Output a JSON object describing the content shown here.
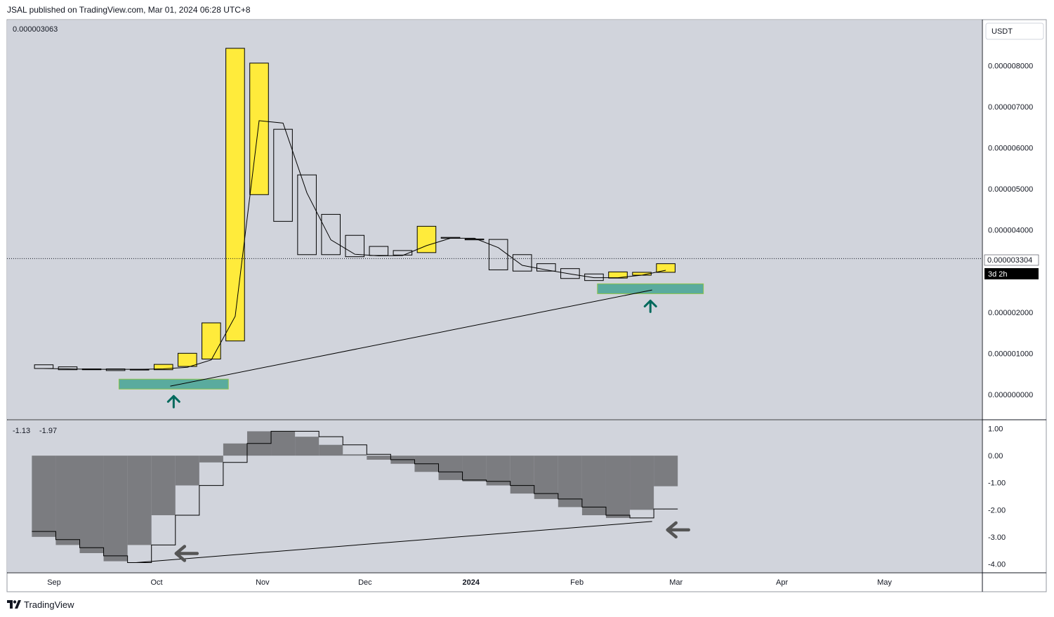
{
  "header": {
    "published": "JSAL published on TradingView.com, Mar 01, 2024 06:28 UTC+8"
  },
  "footer": {
    "brand": "TradingView"
  },
  "colors": {
    "background": "#d1d4dc",
    "bull_candle": "#ffeb3b",
    "bear_candle": "#d1d4dc",
    "zone": "#5aab9e",
    "zone_border": "#8bc34a",
    "arrow_up": "#00695c",
    "arrow_left": "#555555",
    "histogram": "#7b7c80",
    "line": "#000000"
  },
  "chart_data": [
    {
      "type": "candlestick",
      "title": "",
      "legend_value": "0.000003063",
      "currency": "USDT",
      "last_price": "0.000003304",
      "countdown": "3d 2h",
      "ylim": [
        -6e-07,
        9.1e-06
      ],
      "y_ticks": [
        "0.000008000",
        "0.000007000",
        "0.000006000",
        "0.000005000",
        "0.000004000",
        "0.000002000",
        "0.000001000",
        "0.000000000"
      ],
      "x_ticks": [
        "Sep",
        "Oct",
        "Nov",
        "Dec",
        "2024",
        "Feb",
        "Mar",
        "Apr",
        "May"
      ],
      "candles": [
        {
          "date": "2023-08-29",
          "open": 7.2e-07,
          "close": 6.3e-07,
          "high": 7.2e-07,
          "low": 6.3e-07
        },
        {
          "date": "2023-09-05",
          "open": 6.7e-07,
          "close": 6e-07,
          "high": 6.7e-07,
          "low": 6e-07
        },
        {
          "date": "2023-09-12",
          "open": 6.2e-07,
          "close": 6e-07,
          "high": 6.2e-07,
          "low": 6e-07
        },
        {
          "date": "2023-09-19",
          "open": 6.2e-07,
          "close": 5.8e-07,
          "high": 6.2e-07,
          "low": 5.8e-07
        },
        {
          "date": "2023-09-26",
          "open": 6.1e-07,
          "close": 6e-07,
          "high": 6.1e-07,
          "low": 6e-07
        },
        {
          "date": "2023-10-03",
          "open": 6e-07,
          "close": 7.3e-07,
          "high": 7.3e-07,
          "low": 6e-07
        },
        {
          "date": "2023-10-10",
          "open": 6.8e-07,
          "close": 1e-06,
          "high": 1e-06,
          "low": 6.8e-07
        },
        {
          "date": "2023-10-17",
          "open": 8.6e-07,
          "close": 1.74e-06,
          "high": 1.74e-06,
          "low": 8.6e-07
        },
        {
          "date": "2023-10-24",
          "open": 1.3e-06,
          "close": 8.42e-06,
          "high": 8.42e-06,
          "low": 1.3e-06
        },
        {
          "date": "2023-10-31",
          "open": 4.86e-06,
          "close": 8.06e-06,
          "high": 8.06e-06,
          "low": 4.86e-06
        },
        {
          "date": "2023-11-07",
          "open": 6.45e-06,
          "close": 4.21e-06,
          "high": 6.45e-06,
          "low": 4.21e-06
        },
        {
          "date": "2023-11-14",
          "open": 5.34e-06,
          "close": 3.4e-06,
          "high": 5.34e-06,
          "low": 3.4e-06
        },
        {
          "date": "2023-11-21",
          "open": 4.38e-06,
          "close": 3.4e-06,
          "high": 4.38e-06,
          "low": 3.4e-06
        },
        {
          "date": "2023-11-28",
          "open": 3.87e-06,
          "close": 3.35e-06,
          "high": 3.87e-06,
          "low": 3.35e-06
        },
        {
          "date": "2023-12-05",
          "open": 3.6e-06,
          "close": 3.38e-06,
          "high": 3.6e-06,
          "low": 3.38e-06
        },
        {
          "date": "2023-12-12",
          "open": 3.5e-06,
          "close": 3.39e-06,
          "high": 3.5e-06,
          "low": 3.39e-06
        },
        {
          "date": "2023-12-19",
          "open": 3.45e-06,
          "close": 4.09e-06,
          "high": 4.09e-06,
          "low": 3.45e-06
        },
        {
          "date": "2023-12-26",
          "open": 3.82e-06,
          "close": 3.8e-06,
          "high": 3.82e-06,
          "low": 3.8e-06
        },
        {
          "date": "2024-01-02",
          "open": 3.78e-06,
          "close": 3.76e-06,
          "high": 3.78e-06,
          "low": 3.76e-06
        },
        {
          "date": "2024-01-09",
          "open": 3.77e-06,
          "close": 3.03e-06,
          "high": 3.77e-06,
          "low": 3.03e-06
        },
        {
          "date": "2024-01-16",
          "open": 3.4e-06,
          "close": 3e-06,
          "high": 3.4e-06,
          "low": 3e-06
        },
        {
          "date": "2024-01-23",
          "open": 3.18e-06,
          "close": 3e-06,
          "high": 3.18e-06,
          "low": 3e-06
        },
        {
          "date": "2024-01-30",
          "open": 3.06e-06,
          "close": 2.82e-06,
          "high": 3.06e-06,
          "low": 2.82e-06
        },
        {
          "date": "2024-02-06",
          "open": 2.93e-06,
          "close": 2.77e-06,
          "high": 2.93e-06,
          "low": 2.77e-06
        },
        {
          "date": "2024-02-13",
          "open": 2.83e-06,
          "close": 2.98e-06,
          "high": 2.98e-06,
          "low": 2.83e-06
        },
        {
          "date": "2024-02-20",
          "open": 2.9e-06,
          "close": 2.97e-06,
          "high": 2.97e-06,
          "low": 2.9e-06
        },
        {
          "date": "2024-02-27",
          "open": 2.97e-06,
          "close": 3.18e-06,
          "high": 3.18e-06,
          "low": 2.97e-06
        }
      ],
      "moving_average": [
        6.3e-07,
        6.2e-07,
        6.1e-07,
        6.1e-07,
        6.1e-07,
        6.2e-07,
        6.6e-07,
        8.4e-07,
        1.9e-06,
        6.66e-06,
        6.6e-06,
        4.9e-06,
        3.76e-06,
        3.41e-06,
        3.37e-06,
        3.38e-06,
        3.62e-06,
        3.8e-06,
        3.8e-06,
        3.57e-06,
        3.14e-06,
        3.03e-06,
        2.93e-06,
        2.84e-06,
        2.84e-06,
        2.9e-06,
        3.02e-06
      ],
      "demand_zones": [
        {
          "from": "2023-09-20",
          "to": "2023-10-22",
          "low": 1.3e-07,
          "high": 3.7e-07
        },
        {
          "from": "2024-02-07",
          "to": "2024-03-09",
          "low": 2.45e-06,
          "high": 2.69e-06
        }
      ],
      "trendline": {
        "from": [
          "2023-10-05",
          2e-07
        ],
        "to": [
          "2024-02-23",
          2.54e-06
        ]
      }
    },
    {
      "type": "bar",
      "title": "",
      "legend_values": [
        "-1.13",
        "-1.97"
      ],
      "ylim": [
        -4.3,
        1.3
      ],
      "y_ticks": [
        "1.00",
        "0.00",
        "-1.00",
        "-2.00",
        "-3.00",
        "-4.00"
      ],
      "series": [
        {
          "values": [
            -3.0,
            -3.3,
            -3.6,
            -3.9,
            -3.3,
            -2.2,
            -1.1,
            -0.25,
            0.45,
            0.9,
            0.9,
            0.7,
            0.4,
            0.05,
            -0.15,
            -0.3,
            -0.6,
            -0.9,
            -0.95,
            -1.1,
            -1.4,
            -1.6,
            -1.9,
            -2.2,
            -2.3,
            -2.0,
            -1.13
          ]
        },
        {
          "values": [
            -2.8,
            -3.1,
            -3.4,
            -3.7,
            -3.95,
            -3.3,
            -2.2,
            -1.1,
            -0.25,
            0.45,
            0.9,
            0.9,
            0.7,
            0.4,
            0.05,
            -0.15,
            -0.3,
            -0.6,
            -0.9,
            -0.95,
            -1.1,
            -1.4,
            -1.6,
            -1.9,
            -2.2,
            -2.3,
            -1.97
          ]
        }
      ],
      "trendline": {
        "from": [
          "2023-09-25",
          -3.95
        ],
        "to": [
          "2024-02-23",
          -2.43
        ]
      }
    }
  ]
}
